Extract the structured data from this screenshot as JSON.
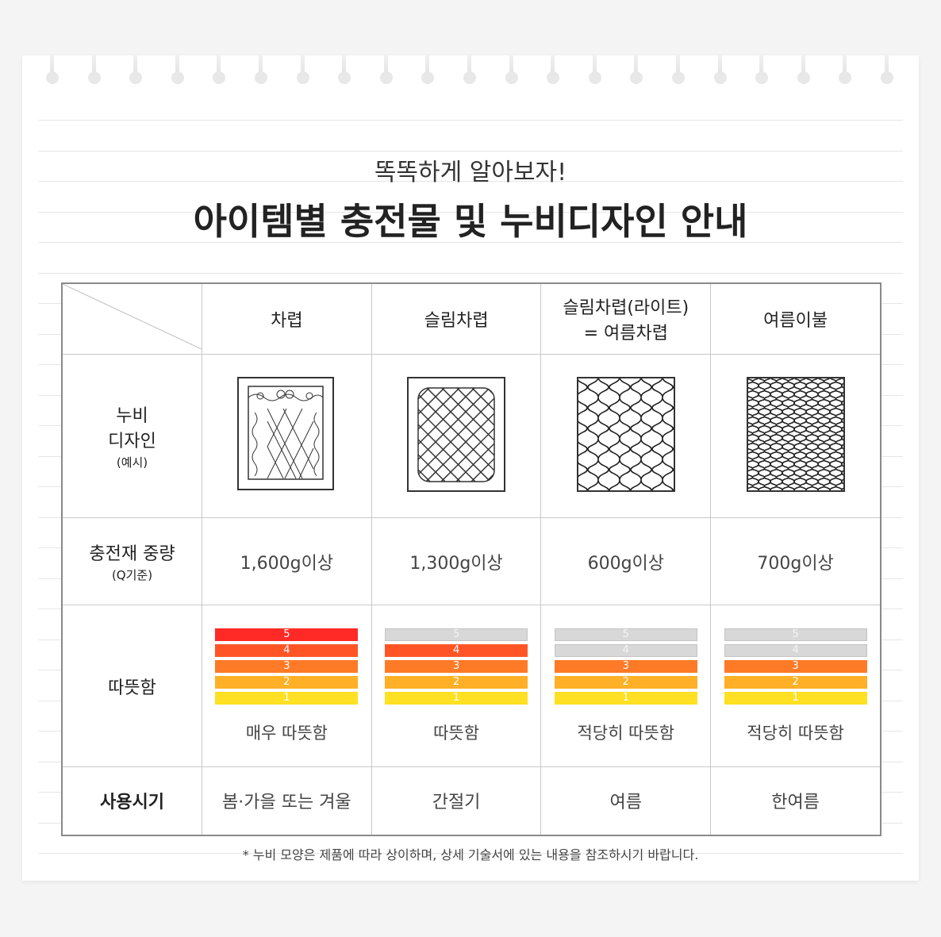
{
  "header": {
    "subtitle": "똑똑하게 알아보자!",
    "title": "아이템별 충전물 및 누비디자인 안내"
  },
  "columns": [
    "차렵",
    "슬림차렵",
    "슬림차렵(라이트)\n= 여름차렵",
    "여름이불"
  ],
  "rows": {
    "design": {
      "label": "누비\n디자인",
      "sub": "(예시)",
      "patterns": [
        "border-lattice-quilt-icon",
        "scalloped-diamond-quilt-icon",
        "ogee-quilt-icon",
        "fine-ogee-quilt-icon"
      ]
    },
    "weight": {
      "label": "충전재 중량",
      "sub": "(Q기준)",
      "values": [
        "1,600g이상",
        "1,300g이상",
        "600g이상",
        "700g이상"
      ]
    },
    "warmth": {
      "label": "따뜻함",
      "levels": [
        5,
        4,
        3,
        3
      ],
      "scale": [
        "5",
        "4",
        "3",
        "2",
        "1"
      ],
      "labels": [
        "매우 따뜻함",
        "따뜻함",
        "적당히 따뜻함",
        "적당히 따뜻함"
      ]
    },
    "season": {
      "label": "사용시기",
      "values": [
        "봄·가을 또는 겨울",
        "간절기",
        "여름",
        "한여름"
      ]
    }
  },
  "colors": {
    "5": "#ff2a26",
    "4": "#ff5526",
    "3": "#ff7a26",
    "2": "#ffb026",
    "1": "#ffe022",
    "off": "#d8d8d8"
  },
  "footnote": "* 누비 모양은 제품에 따라 상이하며, 상세 기술서에 있는 내용을 참조하시기 바랍니다."
}
